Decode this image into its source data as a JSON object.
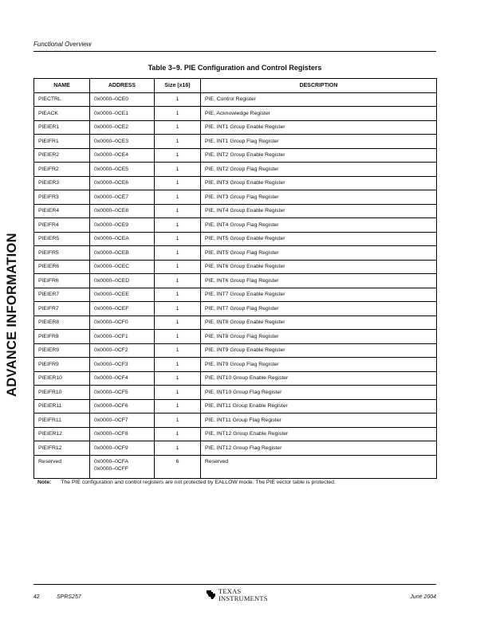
{
  "header": {
    "section": "Functional Overview"
  },
  "side_label": "ADVANCE INFORMATION",
  "table": {
    "title": "Table 3–9.  PIE Configuration and Control Registers",
    "columns": [
      "NAME",
      "ADDRESS",
      "Size (x16)",
      "DESCRIPTION"
    ],
    "rows": [
      [
        "PIECTRL",
        "0x0000–0CE0",
        "1",
        "PIE, Control Register"
      ],
      [
        "PIEACK",
        "0x0000–0CE1",
        "1",
        "PIE, Acknowledge Register"
      ],
      [
        "PIEIER1",
        "0x0000–0CE2",
        "1",
        "PIE, INT1 Group Enable Register"
      ],
      [
        "PIEIFR1",
        "0x0000–0CE3",
        "1",
        "PIE, INT1 Group Flag Register"
      ],
      [
        "PIEIER2",
        "0x0000–0CE4",
        "1",
        "PIE, INT2 Group Enable Register"
      ],
      [
        "PIEIFR2",
        "0x0000–0CE5",
        "1",
        "PIE, INT2 Group Flag Register"
      ],
      [
        "PIEIER3",
        "0x0000–0CE6",
        "1",
        "PIE, INT3 Group Enable Register"
      ],
      [
        "PIEIFR3",
        "0x0000–0CE7",
        "1",
        "PIE, INT3 Group Flag Register"
      ],
      [
        "PIEIER4",
        "0x0000–0CE8",
        "1",
        "PIE, INT4 Group Enable Register"
      ],
      [
        "PIEIFR4",
        "0x0000–0CE9",
        "1",
        "PIE, INT4 Group Flag Register"
      ],
      [
        "PIEIER5",
        "0x0000–0CEA",
        "1",
        "PIE, INT5 Group Enable Register"
      ],
      [
        "PIEIFR5",
        "0x0000–0CEB",
        "1",
        "PIE, INT5 Group Flag Register"
      ],
      [
        "PIEIER6",
        "0x0000–0CEC",
        "1",
        "PIE, INT6 Group Enable Register"
      ],
      [
        "PIEIFR6",
        "0x0000–0CED",
        "1",
        "PIE, INT6 Group Flag Register"
      ],
      [
        "PIEIER7",
        "0x0000–0CEE",
        "1",
        "PIE, INT7 Group Enable Register"
      ],
      [
        "PIEIFR7",
        "0x0000–0CEF",
        "1",
        "PIE, INT7 Group Flag Register"
      ],
      [
        "PIEIER8",
        "0x0000–0CF0",
        "1",
        "PIE, INT8 Group Enable Register"
      ],
      [
        "PIEIFR8",
        "0x0000–0CF1",
        "1",
        "PIE, INT8 Group Flag Register"
      ],
      [
        "PIEIER9",
        "0x0000–0CF2",
        "1",
        "PIE, INT9 Group Enable Register"
      ],
      [
        "PIEIFR9",
        "0x0000–0CF3",
        "1",
        "PIE, INT9 Group Flag Register"
      ],
      [
        "PIEIER10",
        "0x0000–0CF4",
        "1",
        "PIE, INT10 Group Enable Register"
      ],
      [
        "PIEIFR10",
        "0x0000–0CF5",
        "1",
        "PIE, INT10 Group Flag Register"
      ],
      [
        "PIEIER11",
        "0x0000–0CF6",
        "1",
        "PIE, INT11 Group Enable Register"
      ],
      [
        "PIEIFR11",
        "0x0000–0CF7",
        "1",
        "PIE, INT11 Group Flag Register"
      ],
      [
        "PIEIER12",
        "0x0000–0CF8",
        "1",
        "PIE, INT12 Group Enable Register"
      ],
      [
        "PIEIFR12",
        "0x0000–0CF9",
        "1",
        "PIE, INT12 Group Flag Register"
      ]
    ],
    "reserved_row": {
      "name": "Reserved",
      "address_start": "0x0000–0CFA",
      "address_end": "0x0000–0CFF",
      "size": "6",
      "description": "Reserved"
    }
  },
  "note": {
    "label": "Note:",
    "text": "The PIE configuration and control registers are not protected by EALLOW mode. The PIE vector table is protected."
  },
  "footer": {
    "page": "42",
    "doc_id": "SPRS257",
    "date": "June 2004",
    "logo_line1": "TEXAS",
    "logo_line2": "INSTRUMENTS",
    "logo_color": "#000000"
  }
}
